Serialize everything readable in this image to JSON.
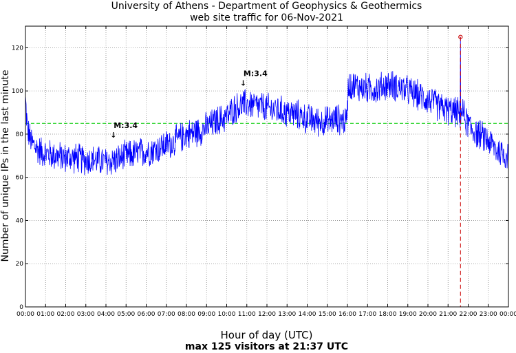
{
  "chart_data": {
    "type": "line",
    "title": "University of Athens - Department of Geophysics & Geothermics",
    "subtitle": "web site traffic for 06-Nov-2021",
    "xlabel": "Hour of day (UTC)",
    "ylabel": "Number of unique IPs in the last minute",
    "footer": "max 125 visitors at 21:37 UTC",
    "xlim_hours": [
      0,
      24
    ],
    "ylim": [
      0,
      130
    ],
    "x_ticks": [
      "00:00",
      "01:00",
      "02:00",
      "03:00",
      "04:00",
      "05:00",
      "06:00",
      "07:00",
      "08:00",
      "09:00",
      "10:00",
      "11:00",
      "12:00",
      "13:00",
      "14:00",
      "15:00",
      "16:00",
      "17:00",
      "18:00",
      "19:00",
      "20:00",
      "21:00",
      "22:00",
      "23:00",
      "00:00"
    ],
    "y_ticks": [
      0,
      20,
      40,
      60,
      80,
      100,
      120
    ],
    "grid": true,
    "average_line": {
      "value": 85,
      "color": "#00cc00",
      "style": "dashed"
    },
    "max_marker": {
      "hour": 21.617,
      "value": 125,
      "color": "#cc0000"
    },
    "annotations": [
      {
        "label": "M:3.4",
        "hour": 4.35,
        "value": 79
      },
      {
        "label": "M:3.4",
        "hour": 10.8,
        "value": 103
      }
    ],
    "series": [
      {
        "name": "unique IPs per minute",
        "color": "#0000ff",
        "trend_hours": [
          0,
          0.1,
          0.3,
          0.6,
          1,
          1.5,
          2,
          2.5,
          3,
          3.5,
          4,
          4.5,
          5,
          5.5,
          6,
          6.5,
          7,
          7.5,
          8,
          8.5,
          9,
          9.5,
          10,
          10.4,
          11,
          11.5,
          12,
          12.5,
          13,
          13.5,
          14,
          14.5,
          15,
          15.5,
          15.95,
          16.05,
          16.5,
          17,
          17.5,
          18,
          18.5,
          19,
          19.5,
          20,
          20.5,
          21,
          21.5,
          21.6,
          21.7,
          21.9,
          22.2,
          22.5,
          23,
          23.5,
          24
        ],
        "trend_values": [
          96,
          82,
          76,
          73,
          71,
          70,
          69,
          69,
          68,
          68,
          67,
          68,
          70,
          71,
          72,
          73,
          75,
          77,
          80,
          81,
          83,
          86,
          88,
          92,
          94,
          93,
          92,
          91,
          90,
          89,
          87,
          86,
          86,
          87,
          86,
          103,
          102,
          101,
          101,
          103,
          102,
          100,
          98,
          96,
          93,
          91,
          90,
          88,
          91,
          86,
          82,
          80,
          77,
          72,
          70
        ],
        "noise_amplitude": 8
      }
    ]
  }
}
